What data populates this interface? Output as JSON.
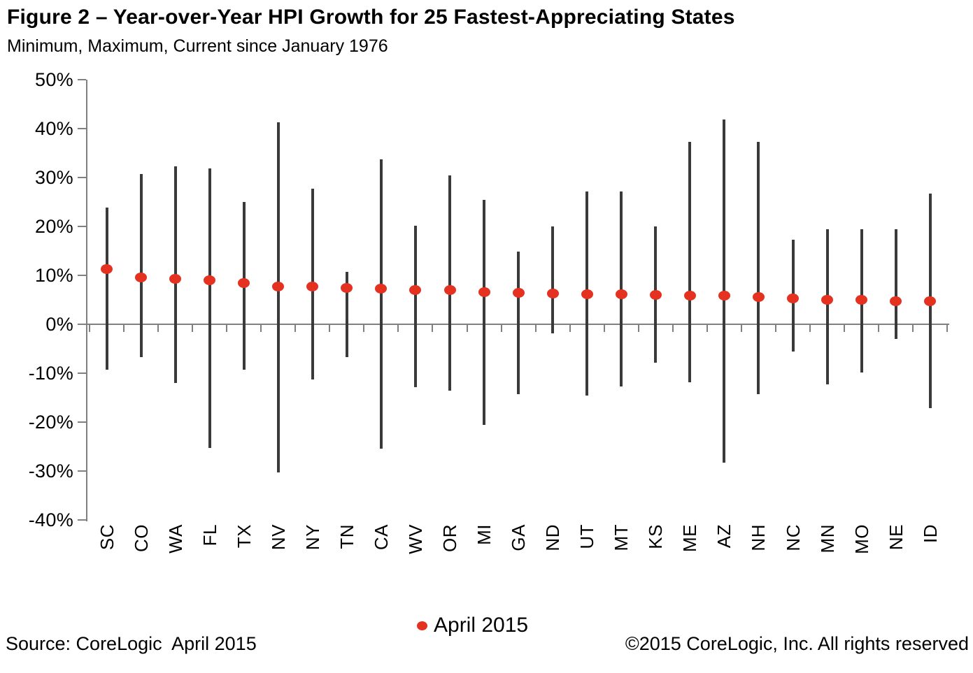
{
  "header": {
    "title": "Figure 2 – Year-over-Year HPI Growth for 25 Fastest-Appreciating States",
    "subtitle": "Minimum, Maximum, Current since January 1976"
  },
  "chart_data": {
    "type": "scatter",
    "subtype": "min-max vertical range bars with current-value dot markers (hi-lo-current)",
    "title": "Figure 2 – Year-over-Year HPI Growth for 25 Fastest-Appreciating States",
    "subtitle": "Minimum, Maximum, Current since January 1976",
    "categories": [
      "SC",
      "CO",
      "WA",
      "FL",
      "TX",
      "NV",
      "NY",
      "TN",
      "CA",
      "WV",
      "OR",
      "MI",
      "GA",
      "ND",
      "UT",
      "MT",
      "KS",
      "ME",
      "AZ",
      "NH",
      "NC",
      "MN",
      "MO",
      "NE",
      "ID"
    ],
    "series": [
      {
        "name": "Maximum",
        "values": [
          23.8,
          30.6,
          32.2,
          31.8,
          25.0,
          41.2,
          27.6,
          10.7,
          33.6,
          20.1,
          30.3,
          25.3,
          14.8,
          19.9,
          27.1,
          27.1,
          19.9,
          37.2,
          41.8,
          37.2,
          17.2,
          19.3,
          19.4,
          19.4,
          26.6
        ]
      },
      {
        "name": "Minimum",
        "values": [
          -9.4,
          -6.8,
          -12.1,
          -25.3,
          -9.4,
          -30.4,
          -11.3,
          -6.8,
          -25.5,
          -12.9,
          -13.6,
          -20.7,
          -14.4,
          -2.0,
          -14.6,
          -12.8,
          -8.0,
          -12.0,
          -28.3,
          -14.3,
          -5.6,
          -12.4,
          -9.9,
          -3.1,
          -17.2
        ]
      },
      {
        "name": "April 2015 (Current)",
        "values": [
          11.2,
          9.5,
          9.2,
          9.0,
          8.3,
          7.7,
          7.6,
          7.3,
          7.2,
          7.0,
          6.9,
          6.5,
          6.4,
          6.2,
          6.1,
          6.1,
          5.9,
          5.8,
          5.8,
          5.5,
          5.2,
          5.0,
          5.0,
          4.6,
          4.6
        ]
      }
    ],
    "xlabel": "",
    "ylabel": "",
    "ylim": [
      -40,
      50
    ],
    "ytick_step": 10,
    "ytick_labels": [
      "50%",
      "40%",
      "30%",
      "20%",
      "10%",
      "0%",
      "-10%",
      "-20%",
      "-30%",
      "-40%"
    ],
    "grid": false,
    "zero_axis_line": true,
    "x_labels_rotation": "90deg counterclockwise, below plot",
    "legend": {
      "position": "bottom-center",
      "label": "April 2015"
    },
    "colors": {
      "range_bar": "#3A3A3A",
      "current_dot": "#E5311F",
      "axis": "#808080",
      "text": "#000000"
    }
  },
  "footer": {
    "source": "Source: CoreLogic  April 2015",
    "copyright": "©2015 CoreLogic, Inc. All rights reserved"
  }
}
